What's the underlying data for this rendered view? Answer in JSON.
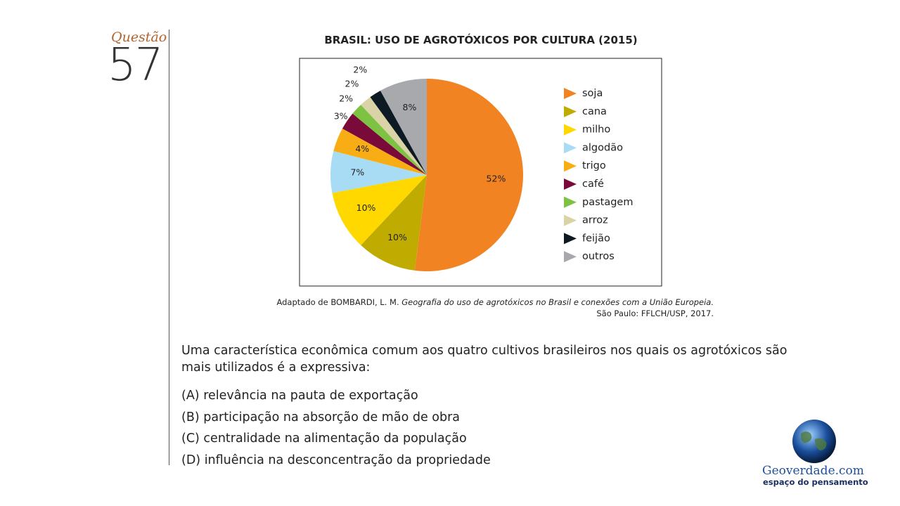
{
  "question": {
    "label": "Questão",
    "number": "57"
  },
  "chart_data": {
    "type": "pie",
    "title": "BRASIL: USO DE AGROTÓXICOS POR CULTURA (2015)",
    "categories": [
      "soja",
      "cana",
      "milho",
      "algodão",
      "trigo",
      "café",
      "pastagem",
      "arroz",
      "feijão",
      "outros"
    ],
    "values": [
      52,
      10,
      10,
      7,
      4,
      3,
      2,
      2,
      2,
      8
    ],
    "value_labels": [
      "52%",
      "10%",
      "10%",
      "7%",
      "4%",
      "3%",
      "2%",
      "2%",
      "2%",
      "8%"
    ],
    "colors": [
      "#f28322",
      "#c0ac00",
      "#ffd800",
      "#a8dcf4",
      "#f9ad14",
      "#7a0a3a",
      "#7dc242",
      "#d9d3a5",
      "#0d1a24",
      "#a7a9ac"
    ],
    "legend": "right"
  },
  "source": {
    "author": "Adaptado de BOMBARDI, L. M.",
    "title": "Geografia do uso de agrotóxicos no Brasil e conexões com a União Europeia.",
    "place": "São Paulo: FFLCH/USP, 2017."
  },
  "text": "Uma característica econômica comum aos quatro cultivos brasileiros nos quais os agrotóxicos são mais utilizados é a expressiva:",
  "options": [
    "(A) relevância na pauta de exportação",
    "(B) participação na absorção de mão de obra",
    "(C) centralidade na alimentação da população",
    "(D) influência na desconcentração da propriedade"
  ],
  "logo": {
    "name": "Geoverdade.com",
    "tagline": "espaço do pensamento"
  }
}
